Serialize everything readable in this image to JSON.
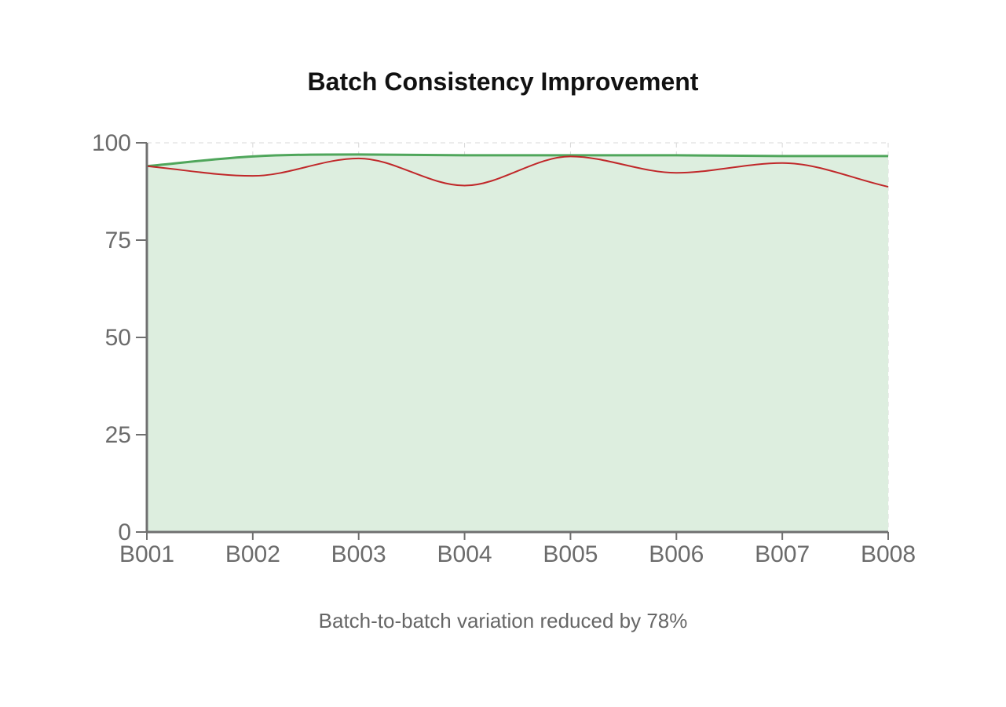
{
  "chart_data": {
    "type": "area",
    "title": "Batch Consistency Improvement",
    "caption": "Batch-to-batch variation reduced by 78%",
    "xlabel": "",
    "ylabel": "",
    "categories": [
      "B001",
      "B002",
      "B003",
      "B004",
      "B005",
      "B006",
      "B007",
      "B008"
    ],
    "ylim": [
      0,
      100
    ],
    "yticks": [
      0,
      25,
      50,
      75,
      100
    ],
    "grid": true,
    "legend": "none",
    "series": [
      {
        "key": "improved",
        "color": "#4fa65b",
        "fill": "#ddeedf",
        "style": "area",
        "values": [
          94,
          96.5,
          97,
          96.8,
          96.8,
          96.8,
          96.6,
          96.6
        ]
      },
      {
        "key": "baseline",
        "color": "#c0282a",
        "style": "line",
        "values": [
          94,
          91.5,
          96,
          89,
          96.5,
          92.3,
          94.8,
          88.7
        ]
      }
    ]
  }
}
